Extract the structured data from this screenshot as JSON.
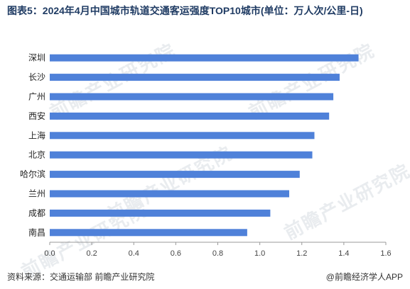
{
  "title": "图表5：2024年4月中国城市轨道交通客运强度TOP10城市(单位：万人次/公里-日)",
  "source": "资料来源：交通运输部 前瞻产业研究院",
  "brand": "@前瞻经济学人APP",
  "watermark": "前瞻产业研究院",
  "colors": {
    "bar": "#4f81d9",
    "axis": "#999999",
    "title": "#1f3b63"
  },
  "chart_data": {
    "type": "bar",
    "orientation": "horizontal",
    "categories": [
      "深圳",
      "长沙",
      "广州",
      "西安",
      "上海",
      "北京",
      "哈尔滨",
      "兰州",
      "成都",
      "南昌"
    ],
    "values": [
      1.47,
      1.38,
      1.35,
      1.33,
      1.26,
      1.25,
      1.19,
      1.14,
      1.05,
      0.94
    ],
    "xlim": [
      0,
      1.6
    ],
    "xticks": [
      "0.0",
      "0.2",
      "0.4",
      "0.6",
      "0.8",
      "1.0",
      "1.2",
      "1.4",
      "1.6"
    ],
    "grid": false,
    "legend": "none"
  }
}
